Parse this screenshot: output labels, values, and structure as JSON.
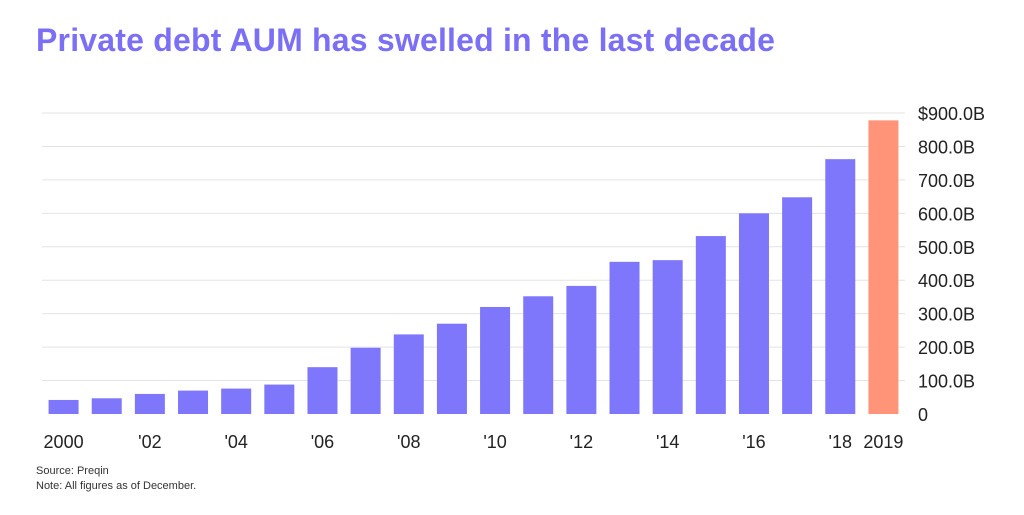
{
  "title": "Private debt AUM has swelled in the last decade",
  "footer": {
    "source": "Source: Preqin",
    "note": "Note: All figures as of December."
  },
  "colors": {
    "title": "#7b6ff6",
    "bar": "#7e77fc",
    "highlight": "#ff9478",
    "grid": "#e3e3e3",
    "text": "#222222"
  },
  "chart_data": {
    "type": "bar",
    "title": "Private debt AUM has swelled in the last decade",
    "xlabel": "",
    "ylabel": "",
    "grid": true,
    "y_axis_position": "right",
    "ylim": [
      0,
      900
    ],
    "y_unit": "billion USD",
    "yticks": [
      0,
      100,
      200,
      300,
      400,
      500,
      600,
      700,
      800,
      900
    ],
    "ytick_labels": [
      "0",
      "100.0B",
      "200.0B",
      "300.0B",
      "400.0B",
      "500.0B",
      "600.0B",
      "700.0B",
      "800.0B",
      "$900.0B"
    ],
    "categories": [
      "2000",
      "2001",
      "2002",
      "2003",
      "2004",
      "2005",
      "2006",
      "2007",
      "2008",
      "2009",
      "2010",
      "2011",
      "2012",
      "2013",
      "2014",
      "2015",
      "2016",
      "2017",
      "2018",
      "2019"
    ],
    "xtick_labels": [
      "2000",
      "",
      "'02",
      "",
      "'04",
      "",
      "'06",
      "",
      "'08",
      "",
      "'10",
      "",
      "'12",
      "",
      "'14",
      "",
      "'16",
      "",
      "'18",
      "2019"
    ],
    "values": [
      42,
      47,
      60,
      70,
      76,
      88,
      140,
      198,
      238,
      270,
      320,
      352,
      383,
      455,
      460,
      532,
      600,
      648,
      762,
      878
    ],
    "highlight_index": 19
  }
}
